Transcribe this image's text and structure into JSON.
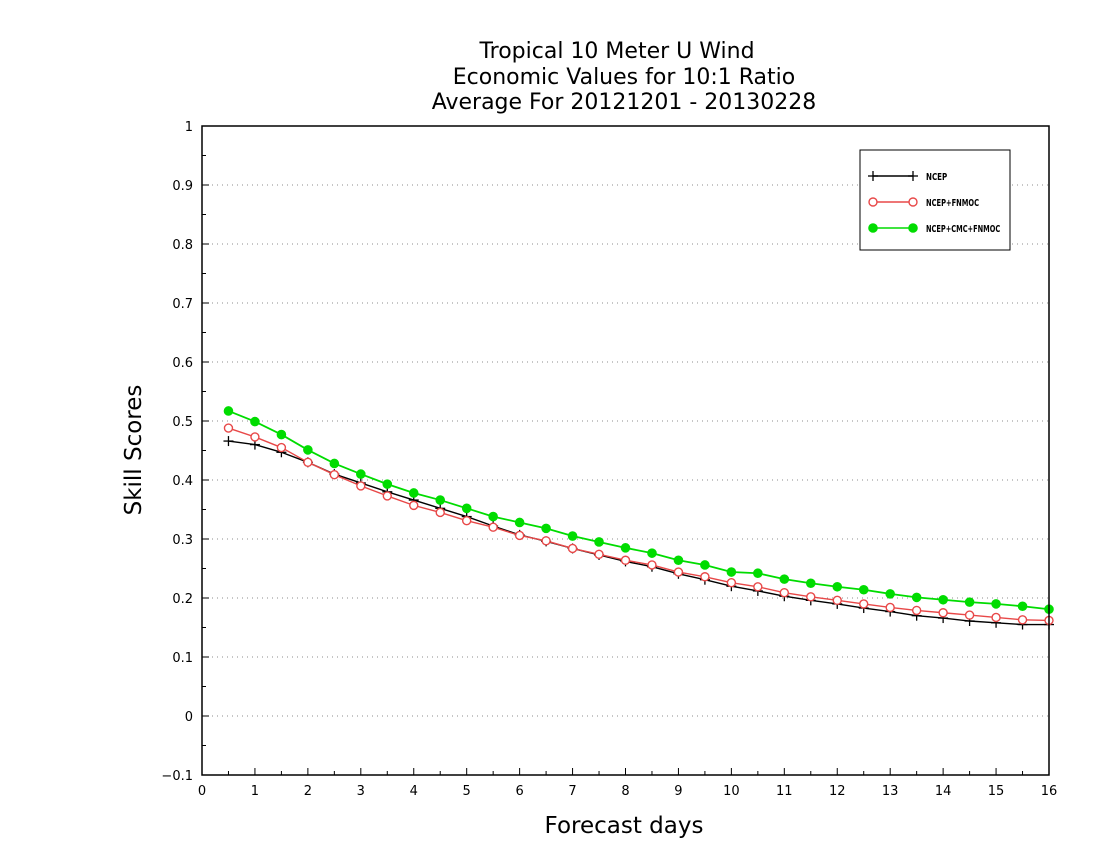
{
  "chart_data": {
    "type": "line",
    "title": [
      "Tropical 10 Meter U Wind",
      "Economic Values for 10:1 Ratio",
      "Average For 20121201 - 20130228"
    ],
    "xlabel": "Forecast days",
    "ylabel": "Skill Scores",
    "xlim": [
      0,
      16
    ],
    "ylim": [
      -0.1,
      1
    ],
    "x_ticks": [
      0,
      1,
      2,
      3,
      4,
      5,
      6,
      7,
      8,
      9,
      10,
      11,
      12,
      13,
      14,
      15,
      16
    ],
    "y_ticks": [
      -0.1,
      0,
      0.1,
      0.2,
      0.3,
      0.4,
      0.5,
      0.6,
      0.7,
      0.8,
      0.9,
      1
    ],
    "y_tick_labels": [
      "−0.1",
      "0",
      "0.1",
      "0.2",
      "0.3",
      "0.4",
      "0.5",
      "0.6",
      "0.7",
      "0.8",
      "0.9",
      "1"
    ],
    "grid": "horizontal dotted",
    "legend_position": "top-right",
    "x": [
      0.5,
      1,
      1.5,
      2,
      2.5,
      3,
      3.5,
      4,
      4.5,
      5,
      5.5,
      6,
      6.5,
      7,
      7.5,
      8,
      8.5,
      9,
      9.5,
      10,
      10.5,
      11,
      11.5,
      12,
      12.5,
      13,
      13.5,
      14,
      14.5,
      15,
      15.5,
      16
    ],
    "series": [
      {
        "name": "NCEP",
        "color": "#000000",
        "marker": "plus",
        "values": [
          0.466,
          0.46,
          0.447,
          0.43,
          0.41,
          0.395,
          0.38,
          0.366,
          0.352,
          0.338,
          0.322,
          0.307,
          0.296,
          0.284,
          0.273,
          0.262,
          0.253,
          0.241,
          0.231,
          0.22,
          0.212,
          0.203,
          0.196,
          0.19,
          0.183,
          0.177,
          0.17,
          0.166,
          0.161,
          0.158,
          0.155,
          0.155
        ]
      },
      {
        "name": "NCEP+FNMOC",
        "color": "#e84848",
        "marker": "open-circle",
        "values": [
          0.488,
          0.473,
          0.455,
          0.43,
          0.409,
          0.39,
          0.373,
          0.357,
          0.345,
          0.331,
          0.32,
          0.306,
          0.297,
          0.284,
          0.274,
          0.264,
          0.256,
          0.244,
          0.236,
          0.226,
          0.219,
          0.209,
          0.202,
          0.196,
          0.19,
          0.184,
          0.179,
          0.175,
          0.171,
          0.167,
          0.163,
          0.162
        ]
      },
      {
        "name": "NCEP+CMC+FNMOC",
        "color": "#00dc00",
        "marker": "filled-circle",
        "values": [
          0.517,
          0.499,
          0.477,
          0.451,
          0.428,
          0.41,
          0.393,
          0.378,
          0.366,
          0.352,
          0.338,
          0.328,
          0.318,
          0.305,
          0.295,
          0.285,
          0.276,
          0.264,
          0.256,
          0.244,
          0.242,
          0.232,
          0.225,
          0.219,
          0.214,
          0.207,
          0.201,
          0.197,
          0.193,
          0.19,
          0.186,
          0.181
        ]
      }
    ]
  }
}
